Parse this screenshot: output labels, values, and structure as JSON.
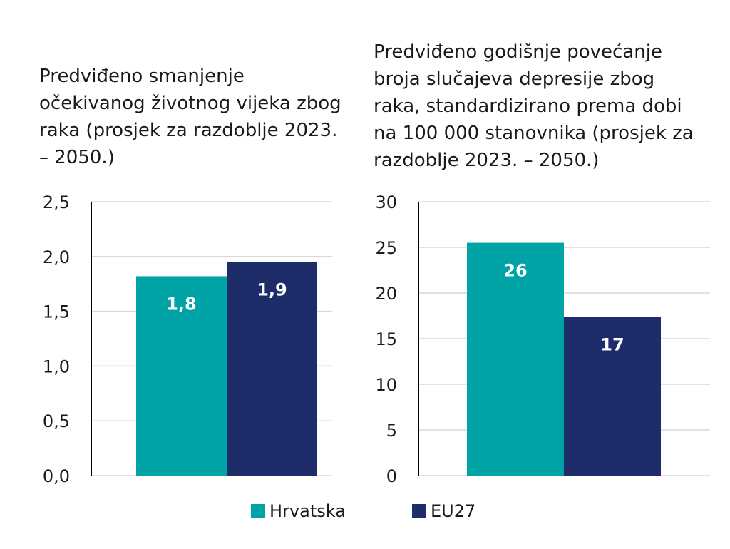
{
  "colors": {
    "hrvatska": "#00a3a6",
    "eu27": "#1e2d69",
    "grid": "#d9d9d9",
    "axis": "#000000"
  },
  "legend": {
    "a_label": "Hrvatska",
    "b_label": "EU27"
  },
  "chart_data": [
    {
      "type": "bar",
      "title_lines": [
        "Predviđeno smanjenje",
        "očekivanog životnog vijeka zbog",
        "raka (prosjek za razdoblje 2023.",
        "– 2050.)"
      ],
      "series": [
        {
          "name": "Hrvatska",
          "values": [
            1.82
          ],
          "label": "1,8"
        },
        {
          "name": "EU27",
          "values": [
            1.95
          ],
          "label": "1,9"
        }
      ],
      "ylim": [
        0,
        2.5
      ],
      "yticks": [
        "0,0",
        "0,5",
        "1,0",
        "1,5",
        "2,0",
        "2,5"
      ],
      "grid": true
    },
    {
      "type": "bar",
      "title_lines": [
        "Predviđeno godišnje povećanje",
        "broja slučajeva depresije zbog",
        "raka, standardizirano prema dobi",
        "na 100 000 stanovnika (prosjek za",
        "razdoblje 2023. – 2050.)"
      ],
      "series": [
        {
          "name": "Hrvatska",
          "values": [
            25.5
          ],
          "label": "26"
        },
        {
          "name": "EU27",
          "values": [
            17.4
          ],
          "label": "17"
        }
      ],
      "ylim": [
        0,
        30
      ],
      "yticks": [
        "0",
        "5",
        "10",
        "15",
        "20",
        "25",
        "30"
      ],
      "grid": true
    }
  ]
}
